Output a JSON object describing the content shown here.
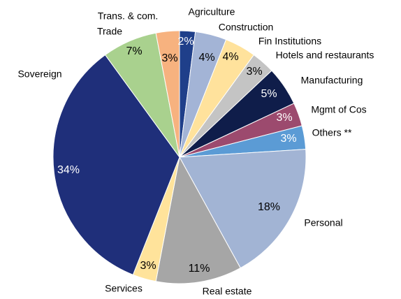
{
  "chart_data": {
    "type": "pie",
    "categories": [
      "Agriculture",
      "Construction",
      "Fin Institutions",
      "Hotels and restaurants",
      "Manufacturing",
      "Mgmt of Cos",
      "Others **",
      "Personal",
      "Real estate",
      "Services",
      "Sovereign",
      "Trade",
      "Trans. & com."
    ],
    "values": [
      2,
      4,
      4,
      3,
      5,
      3,
      3,
      18,
      11,
      3,
      34,
      7,
      3
    ],
    "value_labels": [
      "2%",
      "4%",
      "4%",
      "3%",
      "5%",
      "3%",
      "3%",
      "18%",
      "11%",
      "3%",
      "34%",
      "7%",
      "3%"
    ],
    "colors": [
      "#1f3f8a",
      "#a3b4d6",
      "#ffe29c",
      "#c4c4c4",
      "#0f1d4a",
      "#9c4a6e",
      "#5b9bd5",
      "#a2b4d4",
      "#a6a6a6",
      "#ffe39b",
      "#1f2f7a",
      "#a9d18e",
      "#f7b27f"
    ]
  }
}
